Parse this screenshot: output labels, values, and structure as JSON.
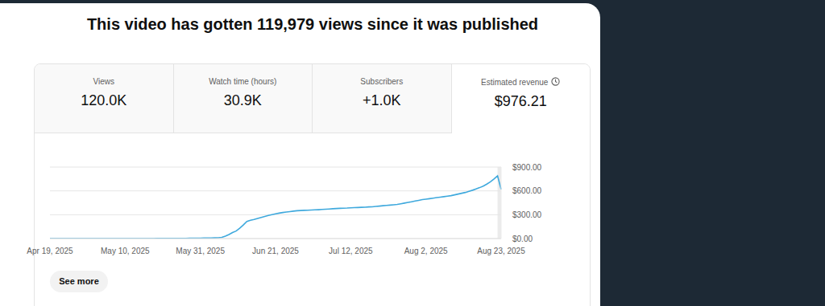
{
  "header": {
    "title": "This video has gotten 119,979 views since it was published"
  },
  "metrics": [
    {
      "label": "Views",
      "value": "120.0K"
    },
    {
      "label": "Watch time (hours)",
      "value": "30.9K"
    },
    {
      "label": "Subscribers",
      "value": "+1.0K"
    },
    {
      "label": "Estimated revenue",
      "value": "$976.21"
    }
  ],
  "chart_data": {
    "type": "line",
    "categories": [
      "Apr 19, 2025",
      null,
      null,
      null,
      null,
      null,
      null,
      null,
      null,
      null,
      null,
      null,
      null,
      null,
      null,
      null,
      null,
      null,
      null,
      null,
      null,
      "May 10, 2025",
      null,
      null,
      null,
      null,
      null,
      null,
      null,
      null,
      null,
      null,
      null,
      null,
      null,
      null,
      null,
      null,
      null,
      null,
      null,
      null,
      "May 31, 2025",
      null,
      null,
      null,
      null,
      null,
      null,
      null,
      null,
      null,
      null,
      null,
      null,
      null,
      null,
      null,
      null,
      null,
      null,
      null,
      null,
      "Jun 21, 2025",
      null,
      null,
      null,
      null,
      null,
      null,
      null,
      null,
      null,
      null,
      null,
      null,
      null,
      null,
      null,
      null,
      null,
      null,
      null,
      null,
      "Jul 12, 2025",
      null,
      null,
      null,
      null,
      null,
      null,
      null,
      null,
      null,
      null,
      null,
      null,
      null,
      null,
      null,
      null,
      null,
      null,
      null,
      null,
      "Aug 2, 2025",
      null,
      null,
      null,
      null,
      null,
      null,
      null,
      null,
      null,
      null,
      null,
      null,
      null,
      null,
      null,
      null,
      null,
      null,
      null,
      null,
      "Aug 23, 2025"
    ],
    "values": [
      0,
      0,
      0,
      0,
      0,
      0,
      0,
      0,
      0,
      0,
      0,
      0,
      0,
      0,
      0,
      0,
      0,
      0,
      0,
      0,
      0,
      0,
      0,
      0,
      0,
      0,
      0,
      0,
      0,
      0,
      1,
      1,
      1,
      2,
      2,
      2,
      3,
      3,
      3,
      4,
      4,
      5,
      5,
      6,
      7,
      8,
      9,
      10,
      15,
      30,
      50,
      75,
      95,
      130,
      170,
      215,
      230,
      240,
      252,
      265,
      278,
      290,
      300,
      310,
      320,
      327,
      333,
      339,
      345,
      350,
      353,
      355,
      357,
      359,
      361,
      363,
      366,
      369,
      372,
      375,
      378,
      380,
      382,
      384,
      387,
      389,
      391,
      393,
      395,
      398,
      400,
      404,
      408,
      413,
      417,
      421,
      425,
      430,
      438,
      446,
      455,
      463,
      472,
      481,
      490,
      496,
      502,
      508,
      515,
      521,
      527,
      534,
      540,
      550,
      560,
      570,
      580,
      594,
      608,
      624,
      641,
      660,
      685,
      715,
      750,
      790,
      620
    ],
    "color": "#3fa9dd",
    "ylim": [
      0,
      900
    ],
    "yticks": [
      {
        "value": 0,
        "label": "$0.00"
      },
      {
        "value": 300,
        "label": "$300.00"
      },
      {
        "value": 600,
        "label": "$600.00"
      },
      {
        "value": 900,
        "label": "$900.00"
      }
    ],
    "grid": true
  },
  "button": {
    "label": "See more"
  }
}
